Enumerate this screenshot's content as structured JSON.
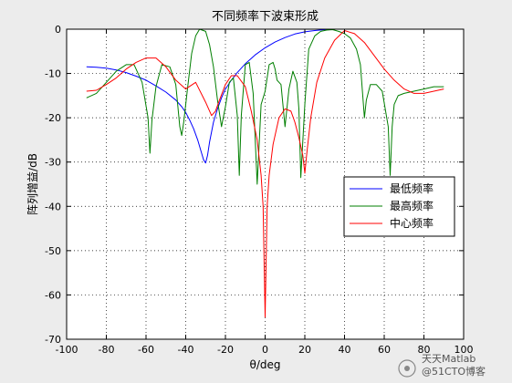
{
  "chart_data": {
    "type": "line",
    "title": "不同频率下波束形成",
    "xlabel": "θ/deg",
    "ylabel": "阵列增益/dB",
    "xlim": [
      -100,
      100
    ],
    "ylim": [
      -70,
      0
    ],
    "xticks": [
      -100,
      -80,
      -60,
      -40,
      -20,
      0,
      20,
      40,
      60,
      80,
      100
    ],
    "yticks": [
      0,
      -10,
      -20,
      -30,
      -40,
      -50,
      -60,
      -70
    ],
    "grid": true,
    "legend_position": "right",
    "series": [
      {
        "name": "最低频率",
        "color": "#0000ff",
        "x": [
          -90,
          -85,
          -80,
          -75,
          -70,
          -65,
          -60,
          -55,
          -50,
          -45,
          -42,
          -40,
          -38,
          -36,
          -34,
          -32,
          -31,
          -30,
          -29,
          -28,
          -26,
          -24,
          -22,
          -20,
          -17,
          -14,
          -10,
          -5,
          0,
          5,
          10,
          15,
          20,
          25,
          30,
          35,
          40
        ],
        "y": [
          -8.5,
          -8.6,
          -8.8,
          -9.2,
          -9.8,
          -10.6,
          -11.5,
          -12.8,
          -14.2,
          -16.0,
          -17.5,
          -18.8,
          -20.5,
          -22.5,
          -25.0,
          -28.0,
          -29.5,
          -30.2,
          -28.5,
          -25.5,
          -21.0,
          -18.0,
          -15.5,
          -13.5,
          -11.5,
          -9.8,
          -7.8,
          -5.8,
          -4.2,
          -2.9,
          -1.9,
          -1.1,
          -0.6,
          -0.3,
          -0.1,
          0,
          0
        ]
      },
      {
        "name": "最高频率",
        "color": "#007f00",
        "x": [
          -90,
          -85,
          -80,
          -75,
          -70,
          -66,
          -62,
          -59,
          -58,
          -57,
          -55,
          -52,
          -48,
          -45,
          -43,
          -42,
          -41,
          -39,
          -37,
          -35,
          -33,
          -30,
          -28,
          -26,
          -24,
          -22,
          -20,
          -18,
          -16,
          -14,
          -13,
          -12,
          -10,
          -8,
          -6,
          -4,
          -2,
          0,
          2,
          4,
          5,
          6,
          8,
          10,
          12,
          14,
          16,
          17,
          18,
          20,
          22,
          25,
          28,
          31,
          34,
          37,
          40,
          43,
          46,
          48,
          49,
          50,
          51,
          53,
          56,
          59,
          62,
          63,
          64,
          65,
          67,
          70,
          75,
          80,
          85,
          90
        ],
        "y": [
          -15.5,
          -14.5,
          -12.0,
          -9.5,
          -8.0,
          -8.0,
          -12.0,
          -20.0,
          -28.0,
          -20.5,
          -13.0,
          -8.0,
          -8.5,
          -12.5,
          -22.0,
          -24.0,
          -21.0,
          -13.0,
          -5.5,
          -1.5,
          0,
          -0.5,
          -3.5,
          -8.5,
          -16.0,
          -22.0,
          -17.5,
          -12.0,
          -11.0,
          -19.5,
          -33.0,
          -19.5,
          -8.0,
          -7.5,
          -14.5,
          -35.0,
          -17.0,
          -14.0,
          -8.0,
          -7.5,
          -9.0,
          -11.5,
          -12.5,
          -22.0,
          -13.5,
          -9.5,
          -12.0,
          -18.0,
          -33.5,
          -17.0,
          -4.5,
          -1.5,
          -0.5,
          -0.2,
          -0.1,
          -0.5,
          -1.0,
          -2.0,
          -4.5,
          -8.0,
          -14.0,
          -20.0,
          -16.0,
          -12.5,
          -12.5,
          -14.0,
          -22.0,
          -33.0,
          -22.0,
          -17.0,
          -15.0,
          -14.5,
          -14.0,
          -13.5,
          -13.0,
          -13.0
        ]
      },
      {
        "name": "中心频率",
        "color": "#ff0000",
        "x": [
          -90,
          -85,
          -80,
          -75,
          -70,
          -65,
          -60,
          -55,
          -50,
          -45,
          -40,
          -35,
          -30,
          -27,
          -25,
          -23,
          -20,
          -17,
          -14,
          -10,
          -7,
          -4,
          -2,
          -1,
          0,
          1,
          2,
          4,
          7,
          10,
          13,
          15,
          17,
          19,
          20,
          21,
          23,
          26,
          30,
          35,
          40,
          45,
          50,
          55,
          60,
          65,
          70,
          75,
          80,
          85,
          90
        ],
        "y": [
          -14.0,
          -13.8,
          -12.5,
          -11.0,
          -9.0,
          -7.5,
          -6.5,
          -6.5,
          -8.5,
          -11.5,
          -13.5,
          -12.0,
          -16.5,
          -19.5,
          -18.5,
          -16.0,
          -12.5,
          -10.5,
          -10.5,
          -13.0,
          -18.5,
          -25.0,
          -33.0,
          -40.0,
          -65.0,
          -40.0,
          -33.0,
          -26.0,
          -20.0,
          -18.0,
          -18.5,
          -21.0,
          -24.5,
          -28.5,
          -32.5,
          -28.0,
          -20.0,
          -12.0,
          -6.5,
          -2.5,
          -0.3,
          -1.0,
          -3.0,
          -6.0,
          -9.0,
          -11.5,
          -13.5,
          -14.5,
          -14.5,
          -14.0,
          -13.5
        ]
      }
    ]
  },
  "watermark": {
    "line1": "天天Matlab",
    "line2": "@51CTO博客"
  }
}
